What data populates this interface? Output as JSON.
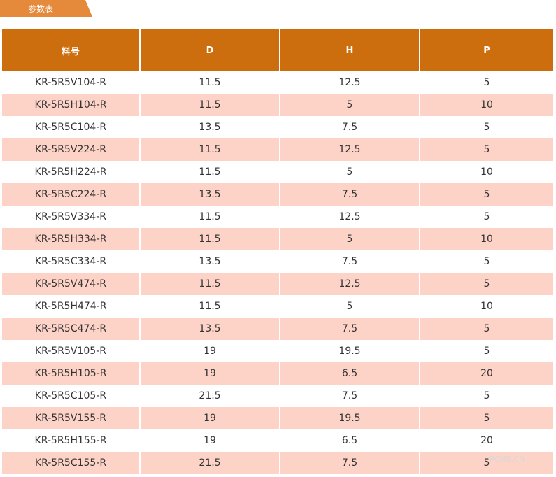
{
  "header": {
    "title": "参数表"
  },
  "table": {
    "columns": [
      "料号",
      "D",
      "H",
      "P"
    ],
    "rows": [
      [
        "KR-5R5V104-R",
        "11.5",
        "12.5",
        "5"
      ],
      [
        "KR-5R5H104-R",
        "11.5",
        "5",
        "10"
      ],
      [
        "KR-5R5C104-R",
        "13.5",
        "7.5",
        "5"
      ],
      [
        "KR-5R5V224-R",
        "11.5",
        "12.5",
        "5"
      ],
      [
        "KR-5R5H224-R",
        "11.5",
        "5",
        "10"
      ],
      [
        "KR-5R5C224-R",
        "13.5",
        "7.5",
        "5"
      ],
      [
        "KR-5R5V334-R",
        "11.5",
        "12.5",
        "5"
      ],
      [
        "KR-5R5H334-R",
        "11.5",
        "5",
        "10"
      ],
      [
        "KR-5R5C334-R",
        "13.5",
        "7.5",
        "5"
      ],
      [
        "KR-5R5V474-R",
        "11.5",
        "12.5",
        "5"
      ],
      [
        "KR-5R5H474-R",
        "11.5",
        "5",
        "10"
      ],
      [
        "KR-5R5C474-R",
        "13.5",
        "7.5",
        "5"
      ],
      [
        "KR-5R5V105-R",
        "19",
        "19.5",
        "5"
      ],
      [
        "KR-5R5H105-R",
        "19",
        "6.5",
        "20"
      ],
      [
        "KR-5R5C105-R",
        "21.5",
        "7.5",
        "5"
      ],
      [
        "KR-5R5V155-R",
        "19",
        "19.5",
        "5"
      ],
      [
        "KR-5R5H155-R",
        "19",
        "6.5",
        "20"
      ],
      [
        "KR-5R5C155-R",
        "21.5",
        "7.5",
        "5"
      ]
    ]
  },
  "watermark": "PCMS.CN"
}
